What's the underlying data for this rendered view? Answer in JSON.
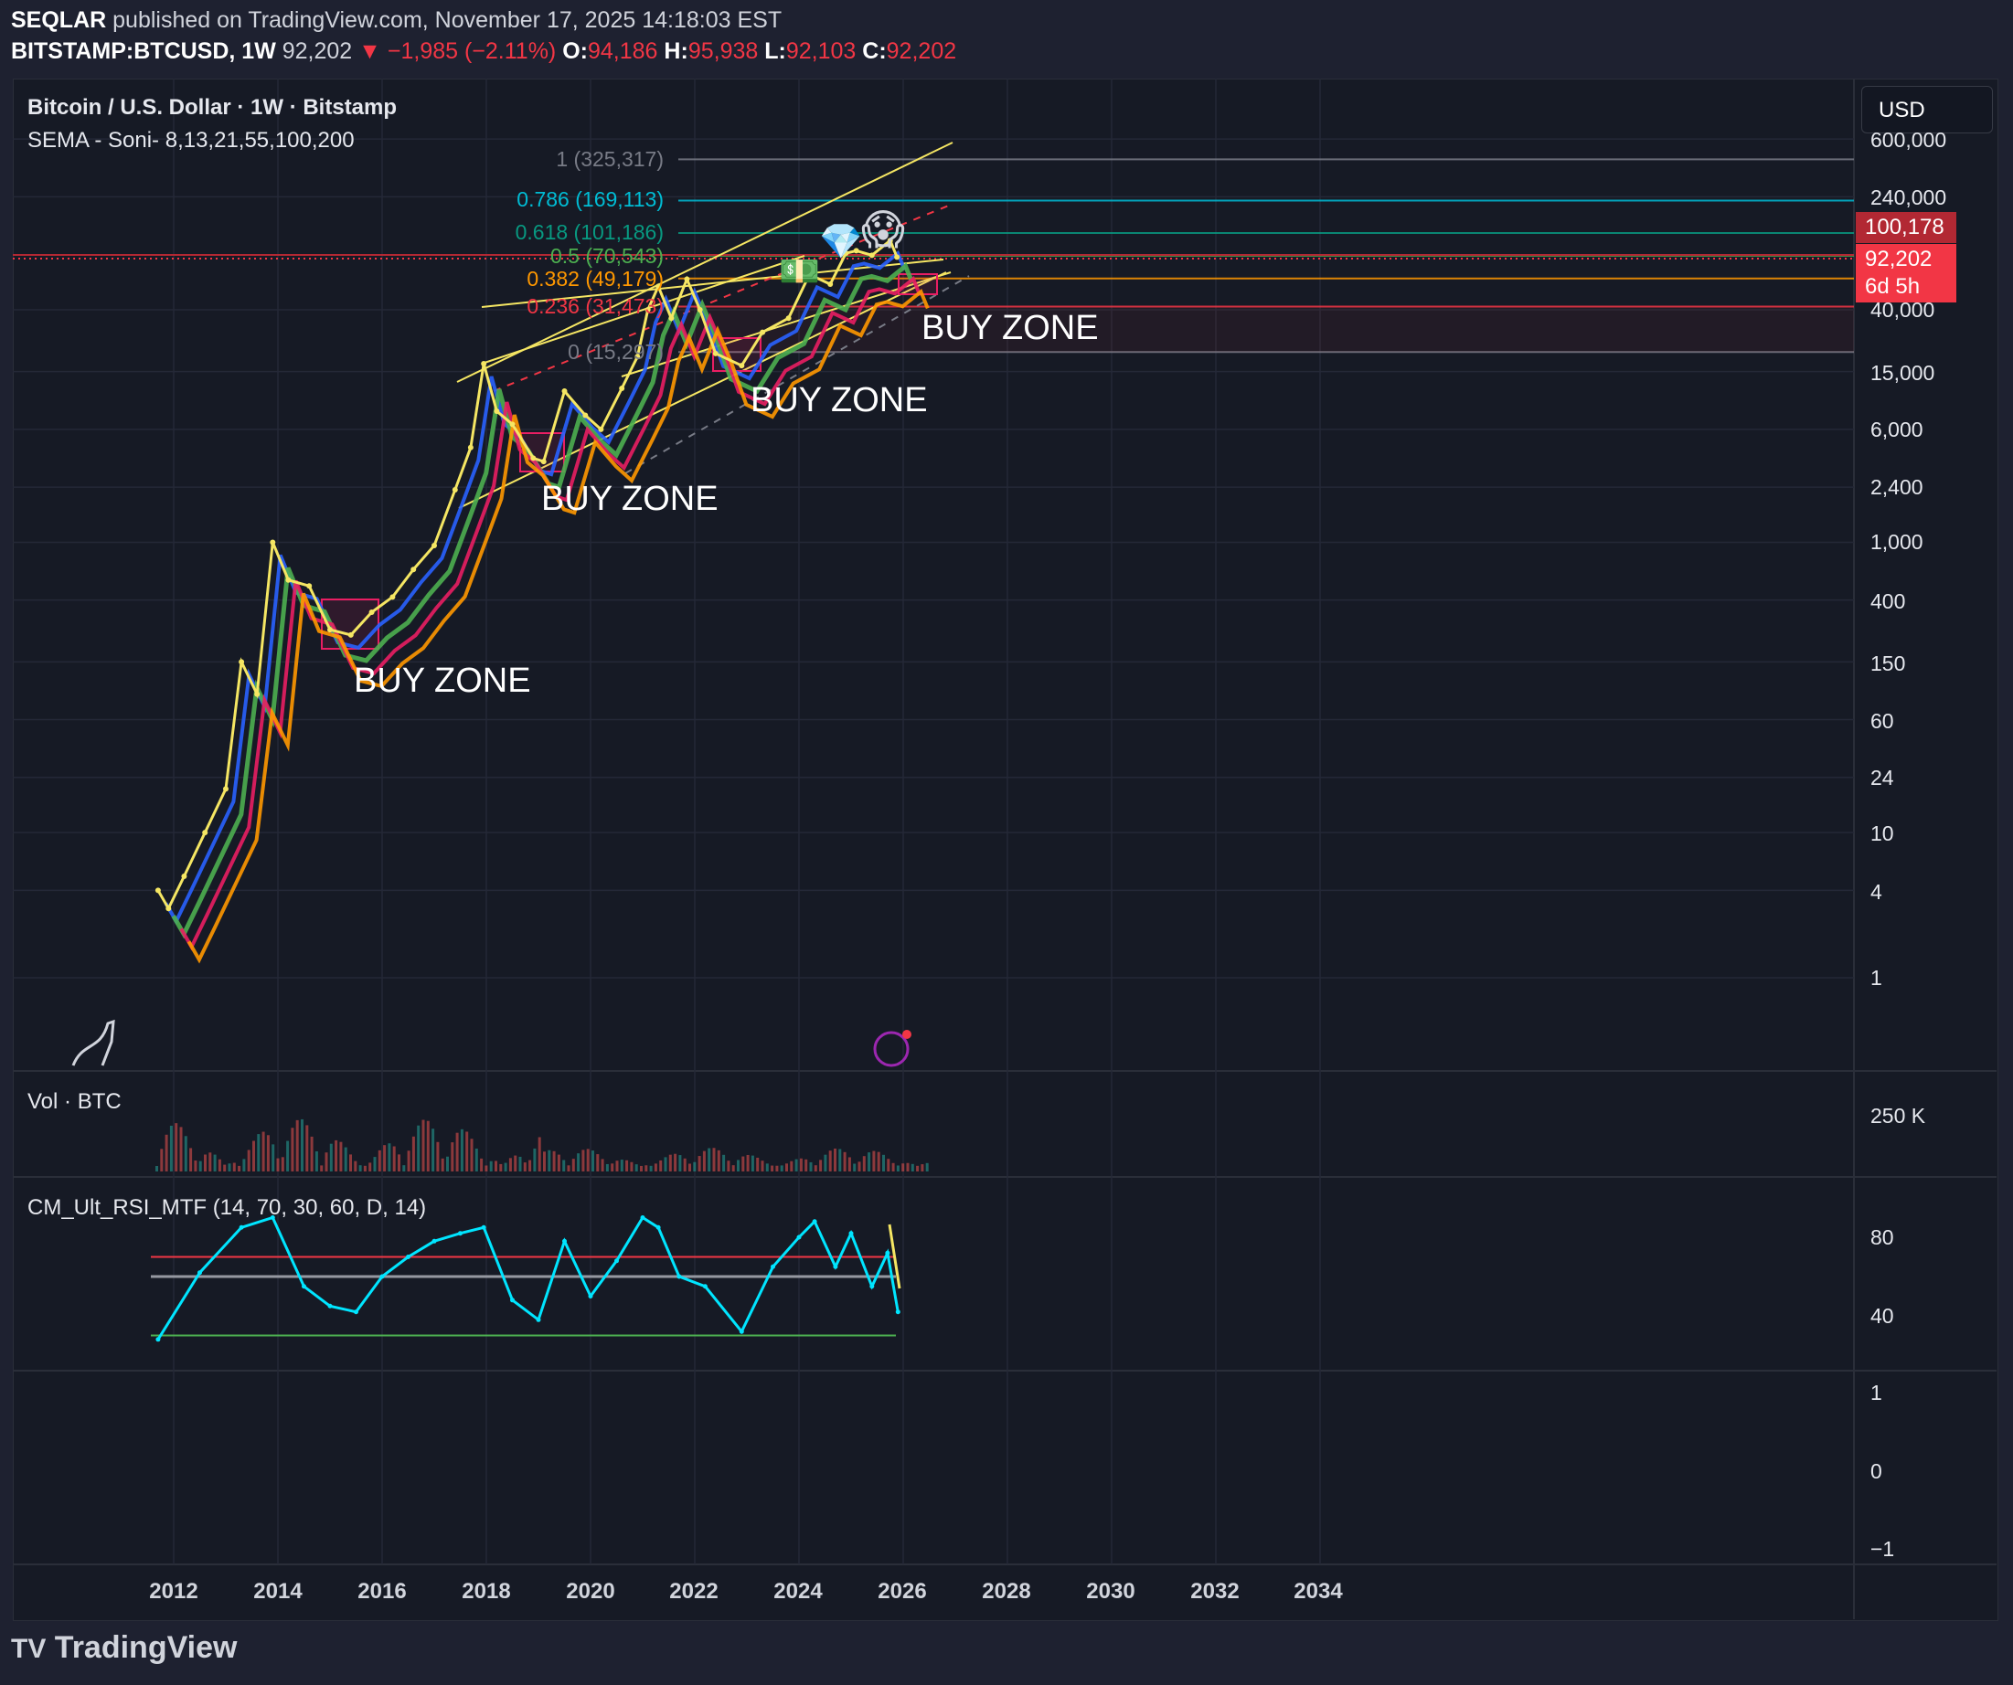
{
  "header": {
    "publisher": "SEQLAR",
    "published_text": "published on TradingView.com, November 17, 2025 14:18:03 EST",
    "symbol": "BITSTAMP:BTCUSD, 1W",
    "last": "92,202",
    "arrow": "▼",
    "change": "−1,985 (−2.11%)",
    "o_label": "O:",
    "o": "94,186",
    "h_label": "H:",
    "h": "95,938",
    "l_label": "L:",
    "l": "92,103",
    "c_label": "C:",
    "c": "92,202"
  },
  "main_pane": {
    "title": "Bitcoin / U.S. Dollar · 1W · Bitstamp",
    "indicator": "SEMA - Soni- 8,13,21,55,100,200"
  },
  "volume_pane": {
    "title": "Vol · BTC"
  },
  "rsi_pane": {
    "title": "CM_Ult_RSI_MTF (14, 70, 30, 60, D, 14)"
  },
  "currency_button": "USD",
  "price_tags": {
    "top": "100,178",
    "current": "92,202",
    "countdown": "6d 5h"
  },
  "fib_levels": [
    {
      "label": "1 (325,317)",
      "color": "#787b86"
    },
    {
      "label": "0.786 (169,113)",
      "color": "#00bcd4"
    },
    {
      "label": "0.618 (101,186)",
      "color": "#089981"
    },
    {
      "label": "0.5 (70,543)",
      "color": "#4caf50"
    },
    {
      "label": "0.382 (49,179)",
      "color": "#ff9800"
    },
    {
      "label": "0.236 (31,473)",
      "color": "#f23645"
    },
    {
      "label": "0 (15,297)",
      "color": "#787b86"
    }
  ],
  "annotations": [
    "BUY ZONE",
    "BUY ZONE",
    "BUY ZONE",
    "BUY ZONE"
  ],
  "emoji": {
    "diamond": "💎",
    "scream": "😱",
    "money": "💵"
  },
  "y_axis_labels": [
    "600,000",
    "240,000",
    "40,000",
    "15,000",
    "6,000",
    "2,400",
    "1,000",
    "400",
    "150",
    "60",
    "24",
    "10",
    "4",
    "1"
  ],
  "volume_axis_labels": [
    "250 K"
  ],
  "rsi_axis_labels": [
    "80",
    "40"
  ],
  "lower_axis_labels": [
    "1",
    "0",
    "−1"
  ],
  "x_axis_labels": [
    "2012",
    "2014",
    "2016",
    "2018",
    "2020",
    "2022",
    "2024",
    "2026",
    "2028",
    "2030",
    "2032",
    "2034"
  ],
  "footer": {
    "logo": "TradingView"
  },
  "chart_data": {
    "type": "line",
    "title": "Bitcoin / U.S. Dollar · 1W · Bitstamp",
    "y_scale": "log",
    "ylim": [
      0.4,
      600000
    ],
    "xlim": [
      2011.4,
      2035.6
    ],
    "series": [
      {
        "name": "BTCUSD",
        "x": [
          2011.7,
          2011.9,
          2012.2,
          2012.6,
          2013.0,
          2013.3,
          2013.6,
          2013.9,
          2014.2,
          2014.6,
          2015.0,
          2015.4,
          2015.8,
          2016.2,
          2016.6,
          2017.0,
          2017.4,
          2017.7,
          2017.95,
          2018.2,
          2018.5,
          2018.9,
          2019.1,
          2019.5,
          2019.9,
          2020.2,
          2020.6,
          2020.9,
          2021.1,
          2021.3,
          2021.55,
          2021.85,
          2022.1,
          2022.4,
          2022.9,
          2023.3,
          2023.8,
          2024.2,
          2024.6,
          2024.9,
          2025.1,
          2025.4,
          2025.75,
          2025.88
        ],
        "values": [
          4,
          3,
          5,
          10,
          20,
          150,
          90,
          1000,
          550,
          500,
          250,
          230,
          330,
          420,
          650,
          950,
          2300,
          4500,
          17000,
          8000,
          6500,
          3800,
          3600,
          11000,
          7500,
          6000,
          11500,
          19000,
          40000,
          58000,
          35000,
          65000,
          40000,
          20000,
          16500,
          28000,
          35000,
          70000,
          60000,
          98000,
          102000,
          95000,
          120000,
          92202
        ]
      }
    ],
    "rsi_series": {
      "name": "RSI",
      "x": [
        2011.7,
        2012.5,
        2013.3,
        2013.9,
        2014.5,
        2015.0,
        2015.5,
        2016.0,
        2016.5,
        2017.0,
        2017.5,
        2017.95,
        2018.5,
        2019.0,
        2019.5,
        2020.0,
        2020.5,
        2021.0,
        2021.3,
        2021.7,
        2022.2,
        2022.9,
        2023.5,
        2024.0,
        2024.3,
        2024.7,
        2025.0,
        2025.4,
        2025.7,
        2025.9
      ],
      "values": [
        28,
        62,
        85,
        90,
        55,
        45,
        42,
        60,
        70,
        78,
        82,
        85,
        48,
        38,
        78,
        50,
        68,
        90,
        85,
        60,
        55,
        32,
        65,
        80,
        88,
        65,
        82,
        55,
        72,
        42
      ],
      "levels": [
        70,
        60,
        30
      ]
    }
  }
}
